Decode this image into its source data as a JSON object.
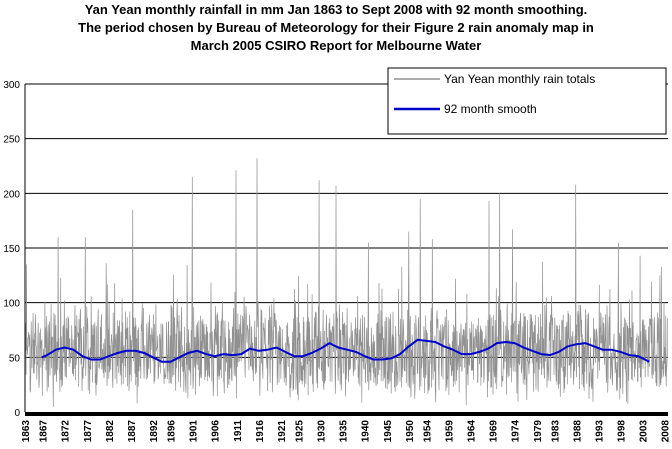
{
  "chart_data": {
    "type": "line",
    "title_lines": [
      "Yan Yean monthly rainfall in mm Jan 1863 to Sept 2008 with 92 month smoothing.",
      "The period chosen by Bureau of Meteorology  for their Figure 2 rain anomaly map in",
      "March 2005 CSIRO Report for Melbourne Water"
    ],
    "xlabel": "",
    "ylabel": "",
    "xlim": [
      1863,
      2008.75
    ],
    "ylim": [
      0,
      300
    ],
    "y_ticks": [
      0,
      50,
      100,
      150,
      200,
      250,
      300
    ],
    "x_ticks": [
      1863,
      1867,
      1872,
      1877,
      1882,
      1887,
      1892,
      1896,
      1901,
      1906,
      1911,
      1916,
      1921,
      1925,
      1930,
      1935,
      1940,
      1945,
      1950,
      1954,
      1959,
      1964,
      1969,
      1974,
      1979,
      1983,
      1988,
      1993,
      1998,
      2003,
      2008
    ],
    "grid": "horizontal",
    "legend_position": "top-right",
    "colors": {
      "raw": "#909090",
      "smooth": "#0000cc",
      "grid": "#000000",
      "axis": "#000000"
    },
    "series": [
      {
        "name": "Yan Yean monthly rain totals",
        "kind": "monthly",
        "start_year": 1863,
        "description_of_values": "monthly totals, approx",
        "baseline": 55,
        "notable_peaks": [
          {
            "x": 1863.3,
            "y": 135
          },
          {
            "x": 1870.5,
            "y": 160
          },
          {
            "x": 1876.7,
            "y": 160
          },
          {
            "x": 1887.4,
            "y": 185
          },
          {
            "x": 1900.9,
            "y": 215
          },
          {
            "x": 1910.8,
            "y": 221
          },
          {
            "x": 1915.6,
            "y": 232
          },
          {
            "x": 1929.7,
            "y": 212
          },
          {
            "x": 1933.5,
            "y": 207
          },
          {
            "x": 1940.8,
            "y": 155
          },
          {
            "x": 1950.0,
            "y": 165
          },
          {
            "x": 1952.6,
            "y": 195
          },
          {
            "x": 1955.3,
            "y": 158
          },
          {
            "x": 1968.2,
            "y": 193
          },
          {
            "x": 1970.6,
            "y": 200
          },
          {
            "x": 1973.5,
            "y": 167
          },
          {
            "x": 1987.8,
            "y": 208
          },
          {
            "x": 1997.5,
            "y": 155
          },
          {
            "x": 2002.4,
            "y": 143
          },
          {
            "x": 2006.9,
            "y": 125
          }
        ]
      },
      {
        "name": "92 month smooth",
        "kind": "smooth",
        "points": [
          {
            "x": 1866.8,
            "y": 50
          },
          {
            "x": 1868.0,
            "y": 52
          },
          {
            "x": 1870.0,
            "y": 57
          },
          {
            "x": 1872.0,
            "y": 59
          },
          {
            "x": 1874.0,
            "y": 57
          },
          {
            "x": 1876.0,
            "y": 51
          },
          {
            "x": 1878.0,
            "y": 48
          },
          {
            "x": 1880.0,
            "y": 48
          },
          {
            "x": 1882.0,
            "y": 51
          },
          {
            "x": 1884.0,
            "y": 54
          },
          {
            "x": 1886.0,
            "y": 56
          },
          {
            "x": 1888.0,
            "y": 56
          },
          {
            "x": 1890.0,
            "y": 54
          },
          {
            "x": 1892.0,
            "y": 50
          },
          {
            "x": 1894.0,
            "y": 46
          },
          {
            "x": 1896.0,
            "y": 46
          },
          {
            "x": 1898.0,
            "y": 50
          },
          {
            "x": 1900.0,
            "y": 54
          },
          {
            "x": 1902.0,
            "y": 56
          },
          {
            "x": 1904.0,
            "y": 53
          },
          {
            "x": 1906.0,
            "y": 51
          },
          {
            "x": 1908.0,
            "y": 53
          },
          {
            "x": 1910.0,
            "y": 52
          },
          {
            "x": 1912.0,
            "y": 53
          },
          {
            "x": 1914.0,
            "y": 58
          },
          {
            "x": 1916.0,
            "y": 56
          },
          {
            "x": 1918.0,
            "y": 57
          },
          {
            "x": 1920.0,
            "y": 59
          },
          {
            "x": 1922.0,
            "y": 55
          },
          {
            "x": 1924.0,
            "y": 51
          },
          {
            "x": 1926.0,
            "y": 51
          },
          {
            "x": 1928.0,
            "y": 54
          },
          {
            "x": 1930.0,
            "y": 58
          },
          {
            "x": 1932.0,
            "y": 63
          },
          {
            "x": 1934.0,
            "y": 59
          },
          {
            "x": 1936.0,
            "y": 57
          },
          {
            "x": 1938.0,
            "y": 55
          },
          {
            "x": 1940.0,
            "y": 51
          },
          {
            "x": 1942.0,
            "y": 48
          },
          {
            "x": 1944.0,
            "y": 48
          },
          {
            "x": 1946.0,
            "y": 49
          },
          {
            "x": 1948.0,
            "y": 53
          },
          {
            "x": 1950.0,
            "y": 60
          },
          {
            "x": 1952.0,
            "y": 66
          },
          {
            "x": 1954.0,
            "y": 65
          },
          {
            "x": 1956.0,
            "y": 64
          },
          {
            "x": 1958.0,
            "y": 60
          },
          {
            "x": 1960.0,
            "y": 57
          },
          {
            "x": 1962.0,
            "y": 53
          },
          {
            "x": 1964.0,
            "y": 53
          },
          {
            "x": 1966.0,
            "y": 55
          },
          {
            "x": 1968.0,
            "y": 58
          },
          {
            "x": 1970.0,
            "y": 63
          },
          {
            "x": 1972.0,
            "y": 64
          },
          {
            "x": 1974.0,
            "y": 63
          },
          {
            "x": 1976.0,
            "y": 59
          },
          {
            "x": 1978.0,
            "y": 56
          },
          {
            "x": 1980.0,
            "y": 53
          },
          {
            "x": 1982.0,
            "y": 52
          },
          {
            "x": 1984.0,
            "y": 55
          },
          {
            "x": 1986.0,
            "y": 60
          },
          {
            "x": 1988.0,
            "y": 62
          },
          {
            "x": 1990.0,
            "y": 63
          },
          {
            "x": 1992.0,
            "y": 60
          },
          {
            "x": 1994.0,
            "y": 57
          },
          {
            "x": 1996.0,
            "y": 57
          },
          {
            "x": 1998.0,
            "y": 55
          },
          {
            "x": 2000.0,
            "y": 52
          },
          {
            "x": 2002.0,
            "y": 51
          },
          {
            "x": 2004.5,
            "y": 46
          }
        ]
      }
    ]
  }
}
